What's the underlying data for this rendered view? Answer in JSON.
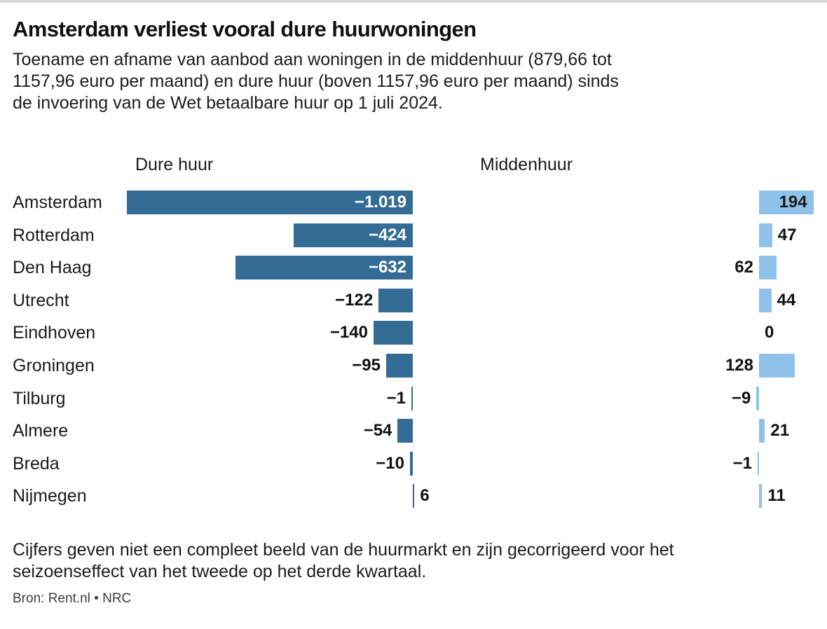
{
  "header": {
    "title": "Amsterdam verliest vooral dure huurwoningen",
    "subtitle_lines": [
      "Toename en afname van aanbod aan woningen in de middenhuur (879,66 tot",
      "1157,96 euro per maand) en dure huur (boven 1157,96 euro per maand) sinds",
      "de invoering van de Wet betaalbare huur op 1 juli 2024."
    ]
  },
  "chart_data": {
    "type": "bar",
    "orientation": "horizontal",
    "title": "Amsterdam verliest vooral dure huurwoningen",
    "categories": [
      "Amsterdam",
      "Rotterdam",
      "Den Haag",
      "Utrecht",
      "Eindhoven",
      "Groningen",
      "Tilburg",
      "Almere",
      "Breda",
      "Nijmegen"
    ],
    "series": [
      {
        "name": "Dure huur",
        "color": "#336D96",
        "inside_label_color": "#ffffff",
        "values": [
          -1019,
          -424,
          -632,
          -122,
          -140,
          -95,
          -1,
          -54,
          -10,
          6
        ],
        "labels": [
          "−1.019",
          "−424",
          "−632",
          "−122",
          "−140",
          "−95",
          "−1",
          "−54",
          "−10",
          "6"
        ],
        "label_side": [
          "in",
          "in",
          "in",
          "left",
          "left",
          "left",
          "left",
          "left",
          "left",
          "right"
        ]
      },
      {
        "name": "Middenhuur",
        "color": "#8FC2E9",
        "inside_label_color": "#1c1c1c",
        "values": [
          194,
          47,
          62,
          44,
          0,
          128,
          -9,
          21,
          -1,
          11
        ],
        "labels": [
          "194",
          "47",
          "62",
          "44",
          "0",
          "128",
          "−9",
          "21",
          "−1",
          "11"
        ],
        "label_side": [
          "in",
          "right",
          "left",
          "right",
          "right",
          "left",
          "left",
          "right",
          "left",
          "right"
        ]
      }
    ],
    "outside_label_color": "#111111",
    "grid": false,
    "legend_position": "column-headers"
  },
  "footer": {
    "note_lines": [
      "Cijfers geven niet een compleet beeld van de huurmarkt en zijn gecorrigeerd voor het",
      "seizoenseffect van het tweede op het derde kwartaal."
    ],
    "source": "Bron: Rent.nl • NRC"
  }
}
